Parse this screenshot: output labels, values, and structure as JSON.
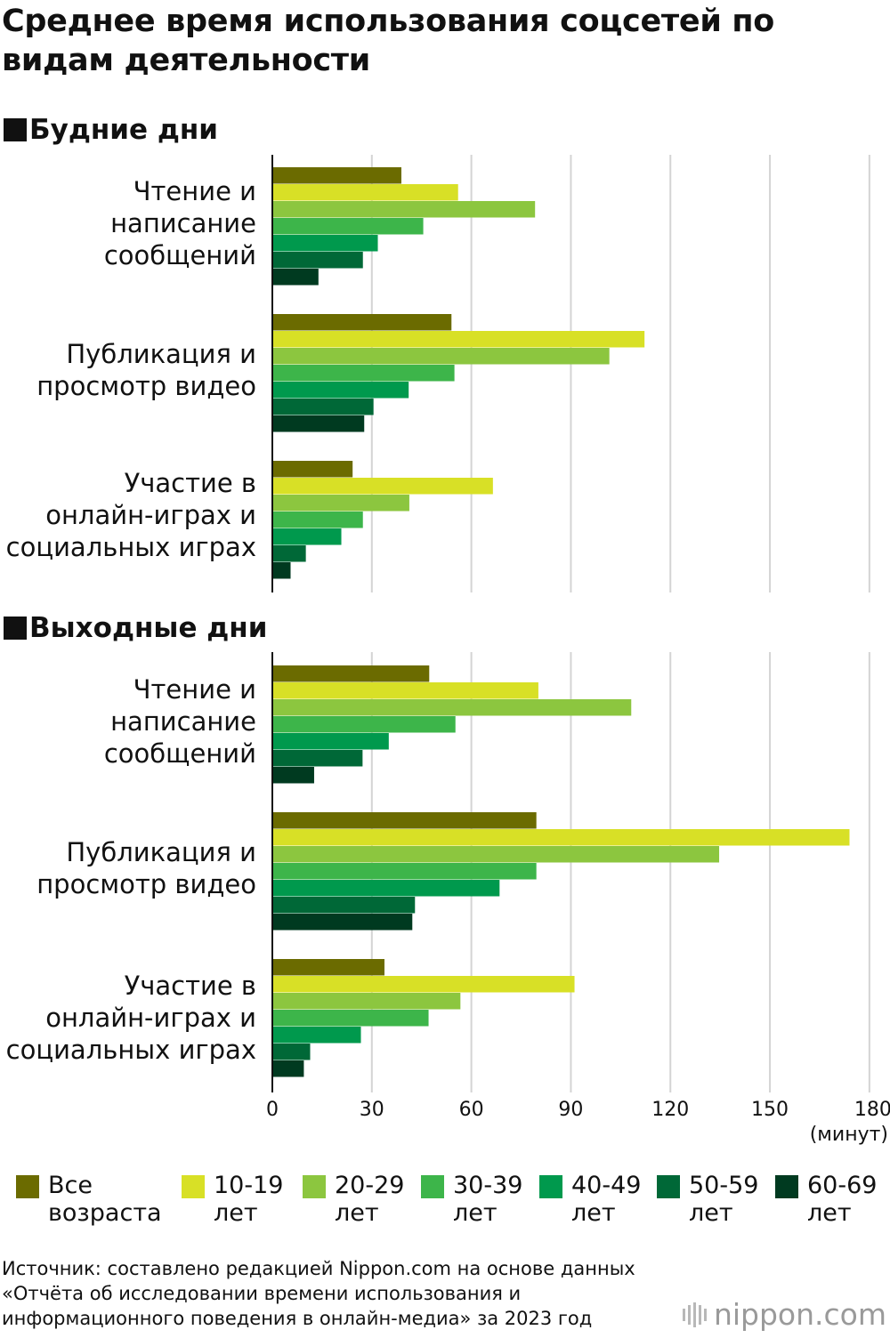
{
  "title": "Среднее время использования соцсетей по видам деятельности",
  "sections": [
    {
      "label": "Будние дни"
    },
    {
      "label": "Выходные дни"
    }
  ],
  "categories": [
    "Чтение и\nнаписание\nсообщений",
    "Публикация и\nпросмотр видео",
    "Участие в\nонлайн-играх и\nсоциальных играх"
  ],
  "axis": {
    "ticks": [
      "0",
      "30",
      "60",
      "90",
      "120",
      "150",
      "180"
    ],
    "unit": "(минут)"
  },
  "legend": [
    {
      "label": "Все\nвозраста",
      "color": "#6b6b00"
    },
    {
      "label": "10-19\nлет",
      "color": "#d8e026"
    },
    {
      "label": "20-29\nлет",
      "color": "#8cc63f"
    },
    {
      "label": "30-39\nлет",
      "color": "#3db54a"
    },
    {
      "label": "40-49\nлет",
      "color": "#00994d"
    },
    {
      "label": "50-59\nлет",
      "color": "#006837"
    },
    {
      "label": "60-69\nлет",
      "color": "#003a20"
    }
  ],
  "source": "Источник: составлено редакцией Nippon.com на основе данных\n«Отчёта об исследовании времени использования и\nинформационного поведения в онлайн-медиа» за 2023 год",
  "logo": {
    "text": "nippon.com"
  },
  "chart_data": [
    {
      "type": "bar",
      "orientation": "horizontal",
      "title": "Будние дни",
      "categories": [
        "Чтение и написание сообщений",
        "Публикация и просмотр видео",
        "Участие в онлайн-играх и социальных играх"
      ],
      "xlim": [
        0,
        180
      ],
      "xlabel": "(минут)",
      "grid": true,
      "series": [
        {
          "name": "Все возраста",
          "values": [
            38.9,
            54.0,
            24.2
          ]
        },
        {
          "name": "10-19 лет",
          "values": [
            56.0,
            112.2,
            66.5
          ]
        },
        {
          "name": "20-29 лет",
          "values": [
            79.2,
            101.6,
            41.3
          ]
        },
        {
          "name": "30-39 лет",
          "values": [
            45.5,
            54.9,
            27.3
          ]
        },
        {
          "name": "40-49 лет",
          "values": [
            31.8,
            41.1,
            20.8
          ]
        },
        {
          "name": "50-59 лет",
          "values": [
            27.3,
            30.5,
            10.1
          ]
        },
        {
          "name": "60-69 лет",
          "values": [
            13.9,
            27.7,
            5.5
          ]
        }
      ]
    },
    {
      "type": "bar",
      "orientation": "horizontal",
      "title": "Выходные дни",
      "categories": [
        "Чтение и написание сообщений",
        "Публикация и просмотр видео",
        "Участие в онлайн-играх и социальных играх"
      ],
      "xlim": [
        0,
        180
      ],
      "xlabel": "(минут)",
      "grid": true,
      "series": [
        {
          "name": "Все возраста",
          "values": [
            47.3,
            79.6,
            33.8
          ]
        },
        {
          "name": "10-19 лет",
          "values": [
            80.2,
            174.0,
            91.1
          ]
        },
        {
          "name": "20-29 лет",
          "values": [
            108.2,
            134.7,
            56.7
          ]
        },
        {
          "name": "30-39 лет",
          "values": [
            55.2,
            79.6,
            47.1
          ]
        },
        {
          "name": "40-49 лет",
          "values": [
            35.1,
            68.5,
            26.7
          ]
        },
        {
          "name": "50-59 лет",
          "values": [
            27.2,
            43.0,
            11.4
          ]
        },
        {
          "name": "60-69 лет",
          "values": [
            12.6,
            42.2,
            9.5
          ]
        }
      ]
    }
  ]
}
